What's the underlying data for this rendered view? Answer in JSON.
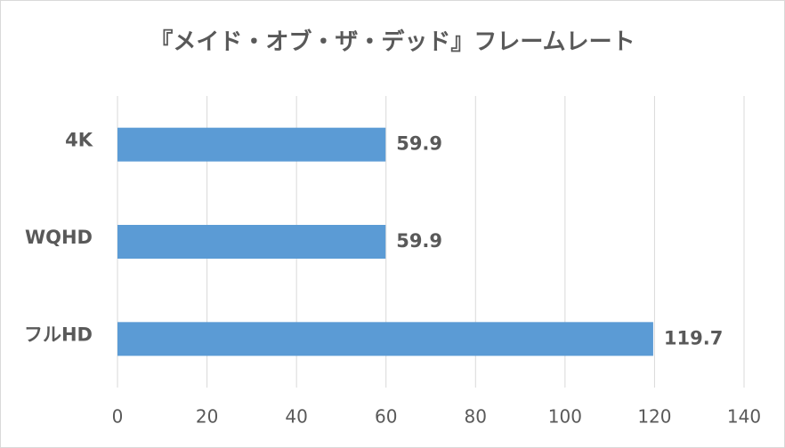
{
  "chart_data": {
    "type": "hbar",
    "title": "『メイド・オブ・ザ・デッド』フレームレート",
    "categories": [
      "4K",
      "WQHD",
      "フルHD"
    ],
    "values": [
      59.9,
      59.9,
      119.7
    ],
    "color": "#5b9bd5",
    "xlim": [
      0,
      140
    ],
    "xticks": [
      0,
      20,
      40,
      60,
      80,
      100,
      120,
      140
    ],
    "grid": true
  }
}
